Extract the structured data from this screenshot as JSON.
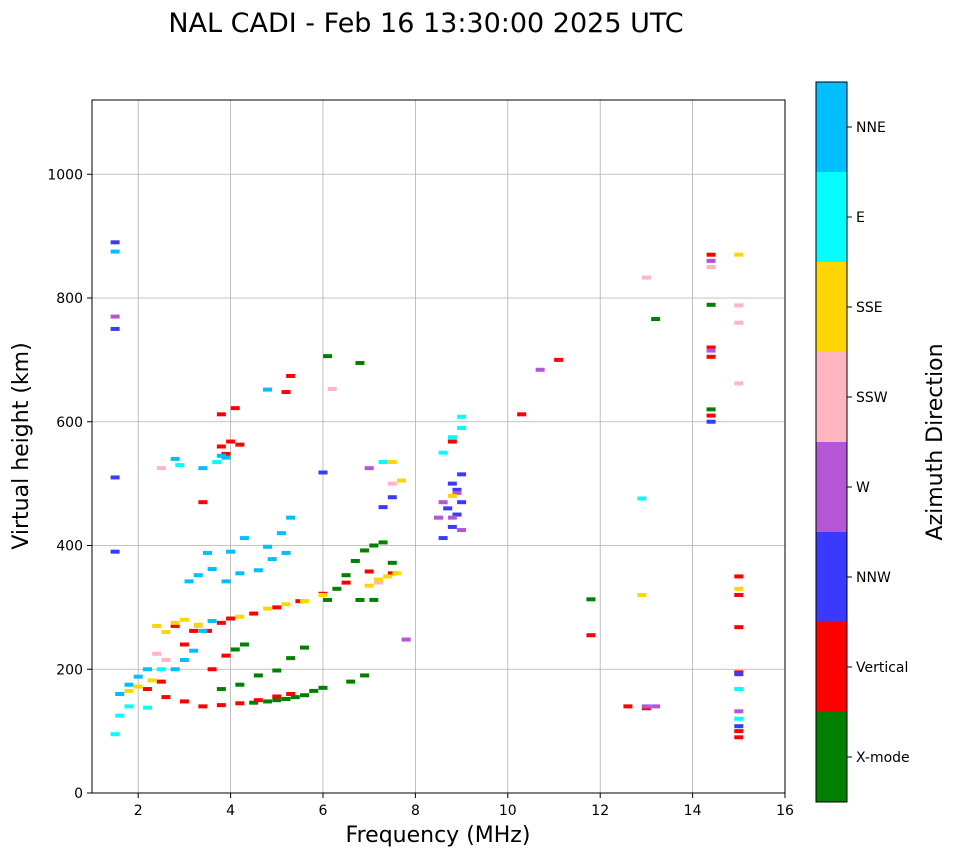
{
  "chart_data": {
    "type": "scatter",
    "title": "NAL CADI - Feb 16 13:30:00 2025 UTC",
    "xlabel": "Frequency (MHz)",
    "ylabel": "Virtual height (km)",
    "xlim": [
      1,
      16
    ],
    "ylim": [
      0,
      1120
    ],
    "xticks": [
      2,
      4,
      6,
      8,
      10,
      12,
      14,
      16
    ],
    "yticks": [
      0,
      200,
      400,
      600,
      800,
      1000
    ],
    "grid": true,
    "colorbar": {
      "label": "Azimuth Direction",
      "categories": [
        {
          "name": "X-mode",
          "color": "#008000"
        },
        {
          "name": "Vertical",
          "color": "#ff0000"
        },
        {
          "name": "NNW",
          "color": "#3a3aff"
        },
        {
          "name": "W",
          "color": "#b556d6"
        },
        {
          "name": "SSW",
          "color": "#ffb6c1"
        },
        {
          "name": "SSE",
          "color": "#ffd700"
        },
        {
          "name": "E",
          "color": "#00ffff"
        },
        {
          "name": "NNE",
          "color": "#00bfff"
        }
      ]
    },
    "series": [
      {
        "name": "X-mode",
        "points": [
          [
            4.5,
            146
          ],
          [
            4.8,
            148
          ],
          [
            5.0,
            150
          ],
          [
            5.2,
            152
          ],
          [
            5.4,
            155
          ],
          [
            5.6,
            158
          ],
          [
            5.8,
            165
          ],
          [
            6.0,
            170
          ],
          [
            3.8,
            168
          ],
          [
            4.2,
            175
          ],
          [
            4.6,
            190
          ],
          [
            5.0,
            198
          ],
          [
            5.3,
            218
          ],
          [
            5.6,
            235
          ],
          [
            4.1,
            232
          ],
          [
            4.3,
            240
          ],
          [
            6.1,
            312
          ],
          [
            6.3,
            330
          ],
          [
            6.5,
            352
          ],
          [
            6.7,
            375
          ],
          [
            6.9,
            392
          ],
          [
            7.1,
            400
          ],
          [
            7.3,
            405
          ],
          [
            7.5,
            372
          ],
          [
            6.8,
            312
          ],
          [
            7.1,
            312
          ],
          [
            6.6,
            180
          ],
          [
            6.9,
            190
          ],
          [
            6.1,
            706
          ],
          [
            6.8,
            695
          ],
          [
            11.8,
            313
          ],
          [
            13.2,
            766
          ],
          [
            14.4,
            789
          ],
          [
            14.4,
            620
          ]
        ]
      },
      {
        "name": "Vertical",
        "points": [
          [
            2.2,
            168
          ],
          [
            2.6,
            155
          ],
          [
            3.0,
            148
          ],
          [
            3.4,
            140
          ],
          [
            3.8,
            142
          ],
          [
            4.2,
            145
          ],
          [
            4.6,
            150
          ],
          [
            5.0,
            156
          ],
          [
            5.3,
            160
          ],
          [
            2.5,
            180
          ],
          [
            3.0,
            240
          ],
          [
            3.5,
            262
          ],
          [
            3.8,
            275
          ],
          [
            4.0,
            282
          ],
          [
            4.5,
            290
          ],
          [
            5.0,
            300
          ],
          [
            5.5,
            310
          ],
          [
            6.0,
            322
          ],
          [
            6.5,
            340
          ],
          [
            7.0,
            358
          ],
          [
            7.5,
            355
          ],
          [
            3.6,
            200
          ],
          [
            3.9,
            222
          ],
          [
            2.8,
            270
          ],
          [
            3.2,
            262
          ],
          [
            3.8,
            560
          ],
          [
            4.0,
            568
          ],
          [
            4.2,
            563
          ],
          [
            3.9,
            548
          ],
          [
            4.1,
            622
          ],
          [
            3.8,
            612
          ],
          [
            5.2,
            648
          ],
          [
            5.3,
            674
          ],
          [
            3.4,
            470
          ],
          [
            8.8,
            568
          ],
          [
            10.3,
            612
          ],
          [
            11.1,
            700
          ],
          [
            11.8,
            255
          ],
          [
            12.6,
            140
          ],
          [
            13.0,
            137
          ],
          [
            14.4,
            610
          ],
          [
            14.4,
            870
          ],
          [
            14.4,
            720
          ],
          [
            14.4,
            705
          ],
          [
            15.0,
            350
          ],
          [
            15.0,
            320
          ],
          [
            15.0,
            268
          ],
          [
            15.0,
            195
          ],
          [
            15.0,
            100
          ],
          [
            15.0,
            90
          ]
        ]
      },
      {
        "name": "NNW",
        "points": [
          [
            1.5,
            890
          ],
          [
            1.5,
            750
          ],
          [
            1.5,
            510
          ],
          [
            1.5,
            390
          ],
          [
            8.6,
            412
          ],
          [
            8.8,
            430
          ],
          [
            8.9,
            450
          ],
          [
            9.0,
            470
          ],
          [
            8.9,
            490
          ],
          [
            8.8,
            500
          ],
          [
            9.0,
            515
          ],
          [
            8.7,
            460
          ],
          [
            6.0,
            518
          ],
          [
            7.5,
            478
          ],
          [
            7.3,
            462
          ],
          [
            14.4,
            600
          ],
          [
            15.0,
            192
          ],
          [
            15.0,
            108
          ]
        ]
      },
      {
        "name": "W",
        "points": [
          [
            1.5,
            770
          ],
          [
            8.5,
            445
          ],
          [
            8.6,
            470
          ],
          [
            8.8,
            445
          ],
          [
            8.9,
            485
          ],
          [
            9.0,
            425
          ],
          [
            7.0,
            525
          ],
          [
            7.8,
            248
          ],
          [
            10.7,
            684
          ],
          [
            13.0,
            140
          ],
          [
            13.2,
            140
          ],
          [
            14.4,
            860
          ],
          [
            14.4,
            715
          ],
          [
            15.0,
            132
          ]
        ]
      },
      {
        "name": "SSW",
        "points": [
          [
            2.4,
            225
          ],
          [
            2.6,
            215
          ],
          [
            2.5,
            525
          ],
          [
            3.3,
            270
          ],
          [
            6.2,
            653
          ],
          [
            7.2,
            340
          ],
          [
            7.5,
            500
          ],
          [
            13.0,
            833
          ],
          [
            15.0,
            788
          ],
          [
            15.0,
            760
          ],
          [
            15.0,
            662
          ],
          [
            14.4,
            850
          ]
        ]
      },
      {
        "name": "SSE",
        "points": [
          [
            1.6,
            160
          ],
          [
            1.8,
            165
          ],
          [
            2.0,
            172
          ],
          [
            2.3,
            182
          ],
          [
            2.4,
            270
          ],
          [
            2.6,
            260
          ],
          [
            2.8,
            275
          ],
          [
            3.0,
            280
          ],
          [
            3.3,
            272
          ],
          [
            4.2,
            285
          ],
          [
            4.8,
            298
          ],
          [
            5.2,
            305
          ],
          [
            5.6,
            310
          ],
          [
            6.0,
            320
          ],
          [
            7.0,
            335
          ],
          [
            7.2,
            345
          ],
          [
            7.4,
            350
          ],
          [
            7.6,
            355
          ],
          [
            7.7,
            505
          ],
          [
            7.5,
            535
          ],
          [
            8.8,
            480
          ],
          [
            12.9,
            320
          ],
          [
            15.0,
            870
          ],
          [
            15.0,
            330
          ]
        ]
      },
      {
        "name": "E",
        "points": [
          [
            1.5,
            95
          ],
          [
            1.6,
            125
          ],
          [
            1.8,
            140
          ],
          [
            2.2,
            138
          ],
          [
            2.5,
            200
          ],
          [
            2.9,
            530
          ],
          [
            3.7,
            535
          ],
          [
            7.3,
            535
          ],
          [
            8.6,
            550
          ],
          [
            8.8,
            575
          ],
          [
            9.0,
            590
          ],
          [
            9.0,
            608
          ],
          [
            12.9,
            476
          ],
          [
            15.0,
            168
          ],
          [
            15.0,
            120
          ]
        ]
      },
      {
        "name": "NNE",
        "points": [
          [
            1.5,
            875
          ],
          [
            1.6,
            160
          ],
          [
            1.8,
            175
          ],
          [
            2.0,
            188
          ],
          [
            2.2,
            200
          ],
          [
            2.8,
            200
          ],
          [
            3.0,
            215
          ],
          [
            3.2,
            230
          ],
          [
            3.4,
            262
          ],
          [
            3.6,
            278
          ],
          [
            3.1,
            342
          ],
          [
            3.3,
            352
          ],
          [
            3.6,
            362
          ],
          [
            3.9,
            342
          ],
          [
            4.2,
            355
          ],
          [
            4.6,
            360
          ],
          [
            4.9,
            378
          ],
          [
            5.2,
            388
          ],
          [
            3.5,
            388
          ],
          [
            4.0,
            390
          ],
          [
            4.8,
            398
          ],
          [
            5.1,
            420
          ],
          [
            5.3,
            445
          ],
          [
            3.4,
            525
          ],
          [
            3.8,
            545
          ],
          [
            4.3,
            412
          ],
          [
            4.8,
            652
          ],
          [
            3.9,
            542
          ],
          [
            2.8,
            540
          ]
        ]
      }
    ]
  }
}
